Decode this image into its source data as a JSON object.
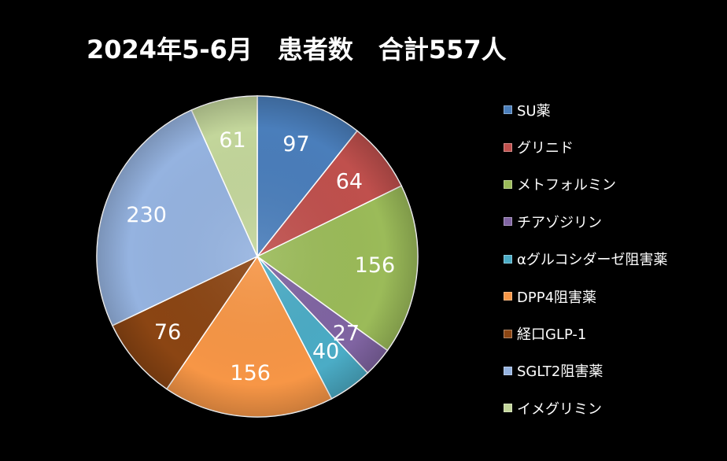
{
  "chart_data": {
    "type": "pie",
    "title": "2024年5-6月　患者数　合計557人",
    "categories": [
      "SU薬",
      "グリニド",
      "メトフォルミン",
      "チアゾジリン",
      "αグルコシダーゼ阻害薬",
      "DPP4阻害薬",
      "経口GLP-1",
      "SGLT2阻害薬",
      "イメグリミン"
    ],
    "values": [
      97,
      64,
      156,
      27,
      40,
      156,
      76,
      230,
      61
    ],
    "colors": [
      "#4a7ebb",
      "#c0504d",
      "#9bbb59",
      "#8064a2",
      "#4bacc6",
      "#f79646",
      "#8b4513",
      "#95b3e0",
      "#c3d69b"
    ],
    "legend_position": "right",
    "data_labels": true
  }
}
